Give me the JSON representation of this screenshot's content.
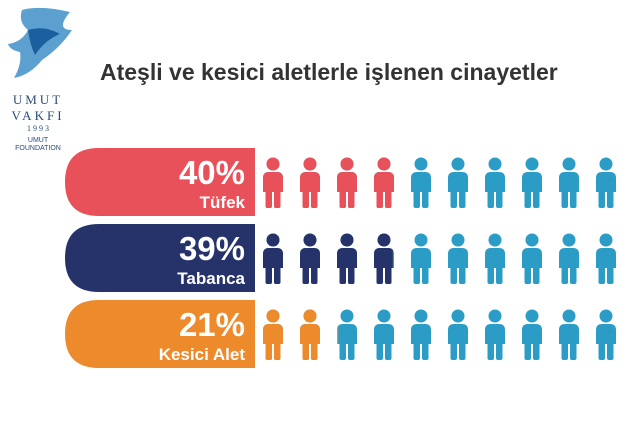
{
  "logo": {
    "line1": "UMUT",
    "line2": "VAKFI",
    "year": "1 9 9 3",
    "foundation1": "UMUT",
    "foundation2": "FOUNDATION"
  },
  "chart_data": {
    "type": "pictogram",
    "title": "Ateşli ve kesici aletlerle işlenen cinayetler",
    "categories": [
      "Tüfek",
      "Tabanca",
      "Kesici Alet"
    ],
    "values": [
      40,
      39,
      21
    ],
    "value_labels": [
      "40%",
      "39%",
      "21%"
    ],
    "colors": [
      "#e9515a",
      "#26336b",
      "#ec8a2c"
    ],
    "base_color": "#2a9cc6"
  }
}
